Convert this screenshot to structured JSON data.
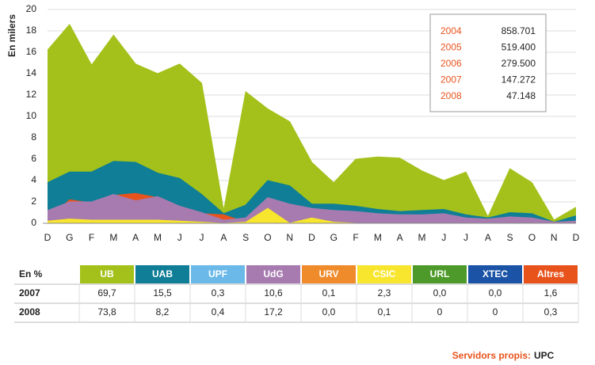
{
  "chart_data": {
    "type": "area",
    "y_label": "En milers",
    "categories": [
      "D",
      "G",
      "F",
      "M",
      "A",
      "M",
      "J",
      "J",
      "A",
      "S",
      "O",
      "N",
      "D",
      "G",
      "F",
      "M",
      "A",
      "M",
      "J",
      "J",
      "A",
      "S",
      "O",
      "N",
      "D"
    ],
    "series": [
      {
        "name": "UB",
        "color": "#a3c11a",
        "values": [
          16.2,
          18.6,
          14.8,
          17.6,
          14.9,
          14.0,
          14.9,
          13.1,
          1.2,
          12.3,
          10.7,
          9.5,
          5.7,
          3.8,
          6.0,
          6.2,
          6.1,
          4.9,
          4.0,
          4.8,
          0.6,
          5.1,
          3.8,
          0.3,
          1.5
        ]
      },
      {
        "name": "UAB",
        "color": "#0f7e96",
        "values": [
          3.8,
          4.8,
          4.8,
          5.8,
          5.7,
          4.7,
          4.2,
          2.7,
          0.9,
          1.7,
          4.0,
          3.5,
          1.8,
          1.8,
          1.6,
          1.3,
          1.1,
          1.2,
          1.3,
          0.8,
          0.5,
          1.0,
          0.9,
          0.1,
          0.7
        ]
      },
      {
        "name": "Altres",
        "color": "#e8531c",
        "values": [
          0.3,
          2.2,
          1.9,
          2.6,
          2.8,
          2.4,
          1.5,
          0.9,
          0.8,
          0.1,
          0.1,
          0.1,
          0.1,
          0.1,
          0.1,
          0.1,
          0.1,
          0.1,
          0.1,
          0.1,
          0.1,
          0.1,
          0.1,
          0.1,
          0.1
        ]
      },
      {
        "name": "UdG",
        "color": "#a77bb0",
        "values": [
          1.2,
          2.0,
          2.0,
          2.7,
          2.1,
          2.5,
          1.6,
          1.0,
          0.3,
          0.5,
          2.4,
          1.8,
          1.4,
          1.2,
          1.1,
          0.9,
          0.8,
          0.8,
          0.9,
          0.5,
          0.4,
          0.6,
          0.5,
          0.1,
          0.2
        ]
      },
      {
        "name": "CSIC",
        "color": "#f7e52e",
        "values": [
          0.2,
          0.4,
          0.3,
          0.3,
          0.3,
          0.3,
          0.2,
          0.1,
          0,
          0.1,
          1.4,
          0,
          0.5,
          0.1,
          0,
          0,
          0,
          0,
          0,
          0,
          0,
          0,
          0,
          0,
          0
        ]
      }
    ],
    "ylim": [
      0,
      20
    ],
    "yticks": [
      0,
      2,
      4,
      6,
      8,
      10,
      12,
      14,
      16,
      18,
      20
    ],
    "grid": true,
    "legend_box": {
      "rows": [
        {
          "year": "2004",
          "value": "858.701"
        },
        {
          "year": "2005",
          "value": "519.400"
        },
        {
          "year": "2006",
          "value": "279.500"
        },
        {
          "year": "2007",
          "value": "147.272"
        },
        {
          "year": "2008",
          "value": "47.148"
        }
      ]
    }
  },
  "table": {
    "header": [
      "En %",
      "UB",
      "UAB",
      "UPF",
      "UdG",
      "URV",
      "CSIC",
      "URL",
      "XTEC",
      "Altres"
    ],
    "header_colors": [
      null,
      "#a3c11a",
      "#0f7e96",
      "#6ab9e8",
      "#a77bb0",
      "#f08b2c",
      "#f7e52e",
      "#4d9a2a",
      "#1b54a6",
      "#e8531c"
    ],
    "rows": [
      [
        "2007",
        "69,7",
        "15,5",
        "0,3",
        "10,6",
        "0,1",
        "2,3",
        "0,0",
        "0,0",
        "1,6"
      ],
      [
        "2008",
        "73,8",
        "8,2",
        "0,4",
        "17,2",
        "0,0",
        "0,1",
        "0",
        "0",
        "0,3"
      ]
    ]
  },
  "footer": {
    "label": "Servidors propis:",
    "value": "UPC"
  }
}
